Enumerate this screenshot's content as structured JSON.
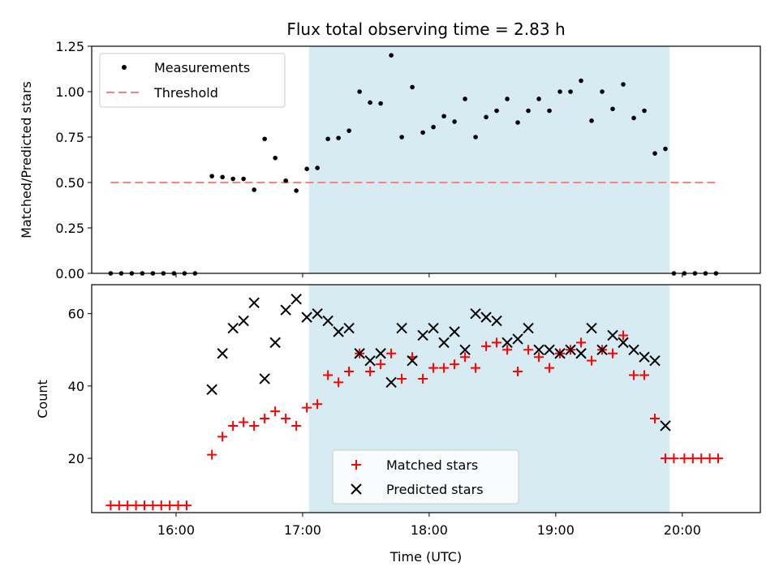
{
  "chart_data": {
    "title": "Flux total observing time = 2.83 h",
    "xlabel": "Time (UTC)",
    "x_unit": "time of day (HH:MM, UTC)",
    "x_range": [
      "15:20",
      "20:37"
    ],
    "x_ticks": [
      "16:00",
      "17:00",
      "18:00",
      "19:00",
      "20:00"
    ],
    "shaded_span": {
      "start": "17:03",
      "end": "19:54",
      "color": "#add8e6"
    },
    "panels": [
      {
        "type": "scatter",
        "ylabel": "Matched/Predicted stars",
        "ylim": [
          0,
          1.25
        ],
        "y_ticks": [
          "0.00",
          "0.25",
          "0.50",
          "0.75",
          "1.00",
          "1.25"
        ],
        "legend": {
          "placement": "upper-left",
          "entries": [
            "Measurements",
            "Threshold"
          ]
        },
        "series": [
          {
            "name": "Measurements",
            "marker": "dot",
            "color": "#000000",
            "points": [
              [
                "15:29",
                0
              ],
              [
                "15:34",
                0
              ],
              [
                "15:39",
                0
              ],
              [
                "15:44",
                0
              ],
              [
                "15:49",
                0
              ],
              [
                "15:54",
                0
              ],
              [
                "15:59",
                0
              ],
              [
                "16:04",
                0
              ],
              [
                "16:09",
                0
              ],
              [
                "16:17",
                0.535
              ],
              [
                "16:22",
                0.53
              ],
              [
                "16:27",
                0.52
              ],
              [
                "16:32",
                0.52
              ],
              [
                "16:37",
                0.46
              ],
              [
                "16:42",
                0.74
              ],
              [
                "16:47",
                0.635
              ],
              [
                "16:52",
                0.51
              ],
              [
                "16:57",
                0.455
              ],
              [
                "17:02",
                0.575
              ],
              [
                "17:07",
                0.58
              ],
              [
                "17:12",
                0.74
              ],
              [
                "17:17",
                0.745
              ],
              [
                "17:22",
                0.785
              ],
              [
                "17:27",
                1.0
              ],
              [
                "17:32",
                0.94
              ],
              [
                "17:37",
                0.935
              ],
              [
                "17:42",
                1.2
              ],
              [
                "17:47",
                0.75
              ],
              [
                "17:52",
                1.025
              ],
              [
                "17:57",
                0.775
              ],
              [
                "18:02",
                0.805
              ],
              [
                "18:07",
                0.865
              ],
              [
                "18:12",
                0.835
              ],
              [
                "18:17",
                0.96
              ],
              [
                "18:22",
                0.75
              ],
              [
                "18:27",
                0.86
              ],
              [
                "18:32",
                0.895
              ],
              [
                "18:37",
                0.96
              ],
              [
                "18:42",
                0.83
              ],
              [
                "18:47",
                0.895
              ],
              [
                "18:52",
                0.96
              ],
              [
                "18:57",
                0.895
              ],
              [
                "19:02",
                1.0
              ],
              [
                "19:07",
                1.0
              ],
              [
                "19:12",
                1.06
              ],
              [
                "19:17",
                0.84
              ],
              [
                "19:22",
                1.0
              ],
              [
                "19:27",
                0.905
              ],
              [
                "19:32",
                1.04
              ],
              [
                "19:37",
                0.855
              ],
              [
                "19:42",
                0.895
              ],
              [
                "19:47",
                0.66
              ],
              [
                "19:52",
                0.685
              ],
              [
                "19:56",
                0
              ],
              [
                "20:01",
                0
              ],
              [
                "20:06",
                0
              ],
              [
                "20:11",
                0
              ],
              [
                "20:16",
                0
              ]
            ]
          },
          {
            "name": "Threshold",
            "style": "dashed line",
            "color": "#ff8080",
            "points": [
              [
                "15:29",
                0.5
              ],
              [
                "20:16",
                0.5
              ]
            ]
          }
        ]
      },
      {
        "type": "scatter",
        "ylabel": "Count",
        "ylim": [
          5,
          68
        ],
        "y_ticks": [
          "20",
          "40",
          "60"
        ],
        "legend": {
          "placement": "lower-center",
          "entries": [
            "Matched stars",
            "Predicted stars"
          ]
        },
        "series": [
          {
            "name": "Matched stars",
            "marker": "plus",
            "color": "#ff0000",
            "points": [
              [
                "15:29",
                7
              ],
              [
                "15:33",
                7
              ],
              [
                "15:37",
                7
              ],
              [
                "15:41",
                7
              ],
              [
                "15:45",
                7
              ],
              [
                "15:49",
                7
              ],
              [
                "15:53",
                7
              ],
              [
                "15:57",
                7
              ],
              [
                "16:01",
                7
              ],
              [
                "16:05",
                7
              ],
              [
                "16:17",
                21
              ],
              [
                "16:22",
                26
              ],
              [
                "16:27",
                29
              ],
              [
                "16:32",
                30
              ],
              [
                "16:37",
                29
              ],
              [
                "16:42",
                31
              ],
              [
                "16:47",
                33
              ],
              [
                "16:52",
                31
              ],
              [
                "16:57",
                29
              ],
              [
                "17:02",
                34
              ],
              [
                "17:07",
                35
              ],
              [
                "17:12",
                43
              ],
              [
                "17:17",
                41
              ],
              [
                "17:22",
                44
              ],
              [
                "17:27",
                49
              ],
              [
                "17:32",
                44
              ],
              [
                "17:37",
                46
              ],
              [
                "17:42",
                49
              ],
              [
                "17:47",
                42
              ],
              [
                "17:52",
                48
              ],
              [
                "17:57",
                42
              ],
              [
                "18:02",
                45
              ],
              [
                "18:07",
                45
              ],
              [
                "18:12",
                46
              ],
              [
                "18:17",
                48
              ],
              [
                "18:22",
                45
              ],
              [
                "18:27",
                51
              ],
              [
                "18:32",
                52
              ],
              [
                "18:37",
                50
              ],
              [
                "18:42",
                44
              ],
              [
                "18:47",
                50
              ],
              [
                "18:52",
                48
              ],
              [
                "18:57",
                45
              ],
              [
                "19:02",
                49
              ],
              [
                "19:07",
                50
              ],
              [
                "19:12",
                52
              ],
              [
                "19:17",
                47
              ],
              [
                "19:22",
                50
              ],
              [
                "19:27",
                49
              ],
              [
                "19:32",
                54
              ],
              [
                "19:37",
                43
              ],
              [
                "19:42",
                43
              ],
              [
                "19:47",
                31
              ],
              [
                "19:52",
                20
              ],
              [
                "19:56",
                20
              ],
              [
                "20:01",
                20
              ],
              [
                "20:05",
                20
              ],
              [
                "20:09",
                20
              ],
              [
                "20:13",
                20
              ],
              [
                "20:17",
                20
              ]
            ]
          },
          {
            "name": "Predicted stars",
            "marker": "x",
            "color": "#000000",
            "points": [
              [
                "16:17",
                39
              ],
              [
                "16:22",
                49
              ],
              [
                "16:27",
                56
              ],
              [
                "16:32",
                58
              ],
              [
                "16:37",
                63
              ],
              [
                "16:42",
                42
              ],
              [
                "16:47",
                52
              ],
              [
                "16:52",
                61
              ],
              [
                "16:57",
                64
              ],
              [
                "17:02",
                59
              ],
              [
                "17:07",
                60
              ],
              [
                "17:12",
                58
              ],
              [
                "17:17",
                55
              ],
              [
                "17:22",
                56
              ],
              [
                "17:27",
                49
              ],
              [
                "17:32",
                47
              ],
              [
                "17:37",
                49
              ],
              [
                "17:42",
                41
              ],
              [
                "17:47",
                56
              ],
              [
                "17:52",
                47
              ],
              [
                "17:57",
                54
              ],
              [
                "18:02",
                56
              ],
              [
                "18:07",
                52
              ],
              [
                "18:12",
                55
              ],
              [
                "18:17",
                50
              ],
              [
                "18:22",
                60
              ],
              [
                "18:27",
                59
              ],
              [
                "18:32",
                58
              ],
              [
                "18:37",
                52
              ],
              [
                "18:42",
                53
              ],
              [
                "18:47",
                56
              ],
              [
                "18:52",
                50
              ],
              [
                "18:57",
                50
              ],
              [
                "19:02",
                49
              ],
              [
                "19:07",
                50
              ],
              [
                "19:12",
                49
              ],
              [
                "19:17",
                56
              ],
              [
                "19:22",
                50
              ],
              [
                "19:27",
                54
              ],
              [
                "19:32",
                52
              ],
              [
                "19:37",
                50
              ],
              [
                "19:42",
                48
              ],
              [
                "19:47",
                47
              ],
              [
                "19:52",
                29
              ]
            ]
          }
        ]
      }
    ]
  }
}
